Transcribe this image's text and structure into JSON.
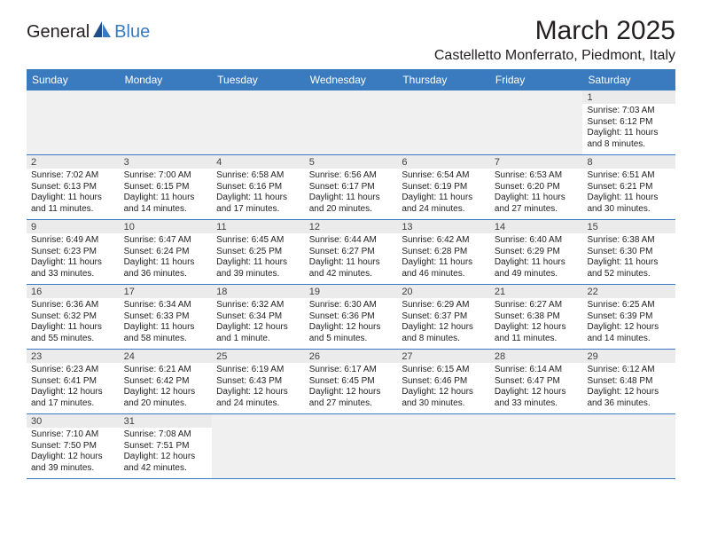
{
  "logo": {
    "part1": "General",
    "part2": "Blue"
  },
  "title": "March 2025",
  "location": "Castelletto Monferrato, Piedmont, Italy",
  "accent_color": "#3a7bbf",
  "stripe_color": "#ebebeb",
  "blank_color": "#f0f0f0",
  "text_color": "#222222",
  "day_names": [
    "Sunday",
    "Monday",
    "Tuesday",
    "Wednesday",
    "Thursday",
    "Friday",
    "Saturday"
  ],
  "weeks": [
    [
      null,
      null,
      null,
      null,
      null,
      null,
      {
        "n": "1",
        "sr": "Sunrise: 7:03 AM",
        "ss": "Sunset: 6:12 PM",
        "d1": "Daylight: 11 hours",
        "d2": "and 8 minutes."
      }
    ],
    [
      {
        "n": "2",
        "sr": "Sunrise: 7:02 AM",
        "ss": "Sunset: 6:13 PM",
        "d1": "Daylight: 11 hours",
        "d2": "and 11 minutes."
      },
      {
        "n": "3",
        "sr": "Sunrise: 7:00 AM",
        "ss": "Sunset: 6:15 PM",
        "d1": "Daylight: 11 hours",
        "d2": "and 14 minutes."
      },
      {
        "n": "4",
        "sr": "Sunrise: 6:58 AM",
        "ss": "Sunset: 6:16 PM",
        "d1": "Daylight: 11 hours",
        "d2": "and 17 minutes."
      },
      {
        "n": "5",
        "sr": "Sunrise: 6:56 AM",
        "ss": "Sunset: 6:17 PM",
        "d1": "Daylight: 11 hours",
        "d2": "and 20 minutes."
      },
      {
        "n": "6",
        "sr": "Sunrise: 6:54 AM",
        "ss": "Sunset: 6:19 PM",
        "d1": "Daylight: 11 hours",
        "d2": "and 24 minutes."
      },
      {
        "n": "7",
        "sr": "Sunrise: 6:53 AM",
        "ss": "Sunset: 6:20 PM",
        "d1": "Daylight: 11 hours",
        "d2": "and 27 minutes."
      },
      {
        "n": "8",
        "sr": "Sunrise: 6:51 AM",
        "ss": "Sunset: 6:21 PM",
        "d1": "Daylight: 11 hours",
        "d2": "and 30 minutes."
      }
    ],
    [
      {
        "n": "9",
        "sr": "Sunrise: 6:49 AM",
        "ss": "Sunset: 6:23 PM",
        "d1": "Daylight: 11 hours",
        "d2": "and 33 minutes."
      },
      {
        "n": "10",
        "sr": "Sunrise: 6:47 AM",
        "ss": "Sunset: 6:24 PM",
        "d1": "Daylight: 11 hours",
        "d2": "and 36 minutes."
      },
      {
        "n": "11",
        "sr": "Sunrise: 6:45 AM",
        "ss": "Sunset: 6:25 PM",
        "d1": "Daylight: 11 hours",
        "d2": "and 39 minutes."
      },
      {
        "n": "12",
        "sr": "Sunrise: 6:44 AM",
        "ss": "Sunset: 6:27 PM",
        "d1": "Daylight: 11 hours",
        "d2": "and 42 minutes."
      },
      {
        "n": "13",
        "sr": "Sunrise: 6:42 AM",
        "ss": "Sunset: 6:28 PM",
        "d1": "Daylight: 11 hours",
        "d2": "and 46 minutes."
      },
      {
        "n": "14",
        "sr": "Sunrise: 6:40 AM",
        "ss": "Sunset: 6:29 PM",
        "d1": "Daylight: 11 hours",
        "d2": "and 49 minutes."
      },
      {
        "n": "15",
        "sr": "Sunrise: 6:38 AM",
        "ss": "Sunset: 6:30 PM",
        "d1": "Daylight: 11 hours",
        "d2": "and 52 minutes."
      }
    ],
    [
      {
        "n": "16",
        "sr": "Sunrise: 6:36 AM",
        "ss": "Sunset: 6:32 PM",
        "d1": "Daylight: 11 hours",
        "d2": "and 55 minutes."
      },
      {
        "n": "17",
        "sr": "Sunrise: 6:34 AM",
        "ss": "Sunset: 6:33 PM",
        "d1": "Daylight: 11 hours",
        "d2": "and 58 minutes."
      },
      {
        "n": "18",
        "sr": "Sunrise: 6:32 AM",
        "ss": "Sunset: 6:34 PM",
        "d1": "Daylight: 12 hours",
        "d2": "and 1 minute."
      },
      {
        "n": "19",
        "sr": "Sunrise: 6:30 AM",
        "ss": "Sunset: 6:36 PM",
        "d1": "Daylight: 12 hours",
        "d2": "and 5 minutes."
      },
      {
        "n": "20",
        "sr": "Sunrise: 6:29 AM",
        "ss": "Sunset: 6:37 PM",
        "d1": "Daylight: 12 hours",
        "d2": "and 8 minutes."
      },
      {
        "n": "21",
        "sr": "Sunrise: 6:27 AM",
        "ss": "Sunset: 6:38 PM",
        "d1": "Daylight: 12 hours",
        "d2": "and 11 minutes."
      },
      {
        "n": "22",
        "sr": "Sunrise: 6:25 AM",
        "ss": "Sunset: 6:39 PM",
        "d1": "Daylight: 12 hours",
        "d2": "and 14 minutes."
      }
    ],
    [
      {
        "n": "23",
        "sr": "Sunrise: 6:23 AM",
        "ss": "Sunset: 6:41 PM",
        "d1": "Daylight: 12 hours",
        "d2": "and 17 minutes."
      },
      {
        "n": "24",
        "sr": "Sunrise: 6:21 AM",
        "ss": "Sunset: 6:42 PM",
        "d1": "Daylight: 12 hours",
        "d2": "and 20 minutes."
      },
      {
        "n": "25",
        "sr": "Sunrise: 6:19 AM",
        "ss": "Sunset: 6:43 PM",
        "d1": "Daylight: 12 hours",
        "d2": "and 24 minutes."
      },
      {
        "n": "26",
        "sr": "Sunrise: 6:17 AM",
        "ss": "Sunset: 6:45 PM",
        "d1": "Daylight: 12 hours",
        "d2": "and 27 minutes."
      },
      {
        "n": "27",
        "sr": "Sunrise: 6:15 AM",
        "ss": "Sunset: 6:46 PM",
        "d1": "Daylight: 12 hours",
        "d2": "and 30 minutes."
      },
      {
        "n": "28",
        "sr": "Sunrise: 6:14 AM",
        "ss": "Sunset: 6:47 PM",
        "d1": "Daylight: 12 hours",
        "d2": "and 33 minutes."
      },
      {
        "n": "29",
        "sr": "Sunrise: 6:12 AM",
        "ss": "Sunset: 6:48 PM",
        "d1": "Daylight: 12 hours",
        "d2": "and 36 minutes."
      }
    ],
    [
      {
        "n": "30",
        "sr": "Sunrise: 7:10 AM",
        "ss": "Sunset: 7:50 PM",
        "d1": "Daylight: 12 hours",
        "d2": "and 39 minutes."
      },
      {
        "n": "31",
        "sr": "Sunrise: 7:08 AM",
        "ss": "Sunset: 7:51 PM",
        "d1": "Daylight: 12 hours",
        "d2": "and 42 minutes."
      },
      null,
      null,
      null,
      null,
      null
    ]
  ]
}
